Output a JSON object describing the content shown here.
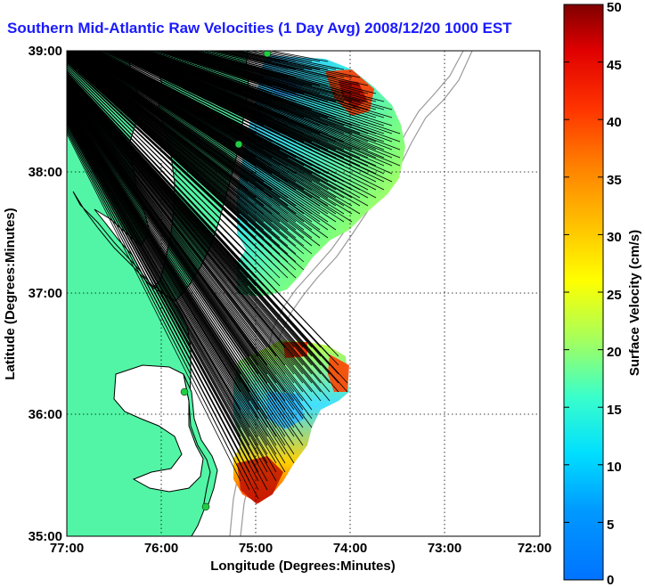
{
  "title": "Southern Mid-Atlantic Raw Velocities (1 Day Avg) 2008/12/20 1000 EST",
  "x_axis": {
    "label": "Longitude (Degrees:Minutes)",
    "ticks": [
      "77:00",
      "76:00",
      "75:00",
      "74:00",
      "73:00",
      "72:00"
    ],
    "range": [
      -77,
      -72
    ]
  },
  "y_axis": {
    "label": "Latitude (Degrees:Minutes)",
    "ticks": [
      "35:00",
      "36:00",
      "37:00",
      "38:00",
      "39:00"
    ],
    "range": [
      35,
      39
    ]
  },
  "colorbar": {
    "label": "Surface Velocity (cm/s)",
    "ticks": [
      "0",
      "5",
      "10",
      "15",
      "20",
      "25",
      "30",
      "35",
      "40",
      "45",
      "50"
    ],
    "range": [
      0,
      50
    ]
  },
  "colors": {
    "land": "#52f5a5",
    "coast": "#000000",
    "title": "#1a1aff"
  },
  "grid": "dotted"
}
